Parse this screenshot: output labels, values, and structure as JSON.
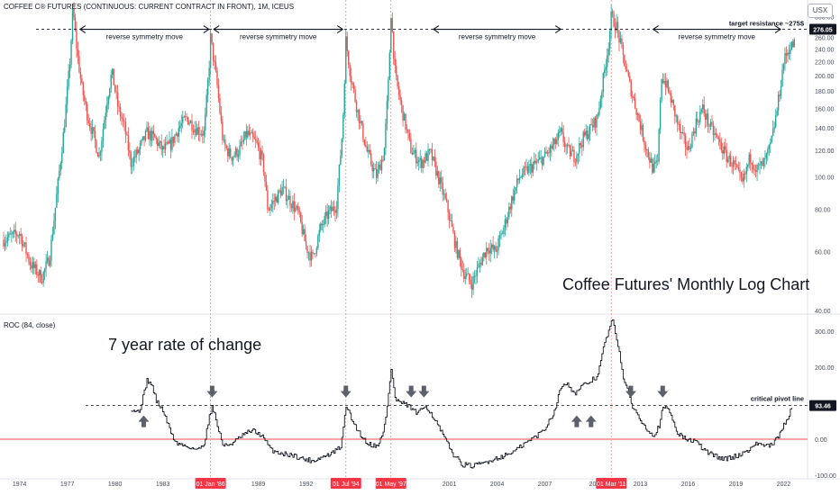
{
  "header": {
    "symbol_title": "COFFEE C® FUTURES (CONTINUOUS: CURRENT CONTRACT IN FRONT), 1M, ICEUS",
    "currency": "USX"
  },
  "annotations": {
    "main_title": "Coffee Futures' Monthly Log Chart",
    "roc_title": "7 year rate of change",
    "target_label": "target resistance ~275$",
    "pivot_label": "critical pivot line",
    "symmetry_label": "reverse symmetry move"
  },
  "colors": {
    "up": "#26a69a",
    "down": "#ef5350",
    "roc_line": "#131722",
    "zero_line": "#f7a7a5",
    "vline": "#f28b82",
    "arrow": "#5d606b"
  },
  "chart_data": [
    {
      "type": "candlestick",
      "title": "COFFEE C® FUTURES (CONTINUOUS: CURRENT CONTRACT IN FRONT), 1M, ICEUS",
      "y_scale": "log",
      "ylim": [
        40,
        320
      ],
      "y_ticks": [
        40,
        60,
        80,
        100,
        120,
        140,
        160,
        180,
        200,
        220,
        240,
        260,
        280,
        300
      ],
      "y_tick_labels": [
        "40.00",
        "60.00",
        "80.00",
        "100.00",
        "120.00",
        "140.00",
        "160.00",
        "180.00",
        "200.00",
        "220.00",
        "240.00",
        "260.00",
        "280.00",
        "300.00"
      ],
      "top_tick_label": "3",
      "x_range": [
        1973.0,
        2023.5
      ],
      "x_ticks": [
        1974,
        1977,
        1980,
        1983,
        1989,
        1992,
        2001,
        2004,
        2007,
        2013,
        2016,
        2019,
        2022
      ],
      "x_tick_labels": [
        "1974",
        "1977",
        "1980",
        "1983",
        "1989",
        "1992",
        "2001",
        "2004",
        "2007",
        "2013",
        "2016",
        "2019",
        "2022"
      ],
      "partial_tick": {
        "x": 2010.0,
        "label": "20"
      },
      "highlighted_dates": [
        {
          "x": 1986.0,
          "label": "01 Jan '86"
        },
        {
          "x": 1994.5,
          "label": "01 Jul '94"
        },
        {
          "x": 1997.33,
          "label": "01 May '97"
        },
        {
          "x": 2011.17,
          "label": "01 Mar '11"
        }
      ],
      "last_price": 276.05,
      "last_price_label": "276.05",
      "target_resistance": 275,
      "price_path": [
        [
          1973.0,
          65
        ],
        [
          1974.0,
          68
        ],
        [
          1974.7,
          55
        ],
        [
          1975.4,
          50
        ],
        [
          1975.9,
          58
        ],
        [
          1976.3,
          85
        ],
        [
          1976.8,
          140
        ],
        [
          1977.2,
          230
        ],
        [
          1977.35,
          318
        ],
        [
          1977.6,
          240
        ],
        [
          1977.9,
          185
        ],
        [
          1978.3,
          150
        ],
        [
          1978.7,
          130
        ],
        [
          1979.0,
          115
        ],
        [
          1979.5,
          170
        ],
        [
          1979.8,
          205
        ],
        [
          1980.2,
          160
        ],
        [
          1980.6,
          140
        ],
        [
          1981.0,
          110
        ],
        [
          1981.5,
          120
        ],
        [
          1982.0,
          135
        ],
        [
          1982.5,
          130
        ],
        [
          1983.0,
          120
        ],
        [
          1983.5,
          125
        ],
        [
          1984.0,
          140
        ],
        [
          1984.5,
          150
        ],
        [
          1985.0,
          140
        ],
        [
          1985.6,
          135
        ],
        [
          1985.9,
          210
        ],
        [
          1986.0,
          260
        ],
        [
          1986.4,
          190
        ],
        [
          1986.8,
          125
        ],
        [
          1987.3,
          115
        ],
        [
          1987.8,
          120
        ],
        [
          1988.3,
          135
        ],
        [
          1988.9,
          125
        ],
        [
          1989.3,
          110
        ],
        [
          1989.6,
          80
        ],
        [
          1990.0,
          85
        ],
        [
          1990.5,
          92
        ],
        [
          1991.0,
          85
        ],
        [
          1991.5,
          78
        ],
        [
          1992.0,
          62
        ],
        [
          1992.4,
          57
        ],
        [
          1992.9,
          70
        ],
        [
          1993.4,
          78
        ],
        [
          1993.9,
          82
        ],
        [
          1994.3,
          140
        ],
        [
          1994.5,
          255
        ],
        [
          1994.8,
          200
        ],
        [
          1995.2,
          160
        ],
        [
          1995.8,
          120
        ],
        [
          1996.4,
          100
        ],
        [
          1996.9,
          118
        ],
        [
          1997.2,
          200
        ],
        [
          1997.33,
          310
        ],
        [
          1997.6,
          200
        ],
        [
          1998.0,
          160
        ],
        [
          1998.6,
          120
        ],
        [
          1999.2,
          110
        ],
        [
          1999.8,
          118
        ],
        [
          2000.3,
          100
        ],
        [
          2000.9,
          80
        ],
        [
          2001.4,
          62
        ],
        [
          2001.9,
          52
        ],
        [
          2002.4,
          48
        ],
        [
          2002.9,
          55
        ],
        [
          2003.4,
          62
        ],
        [
          2003.9,
          60
        ],
        [
          2004.4,
          70
        ],
        [
          2004.9,
          85
        ],
        [
          2005.4,
          100
        ],
        [
          2005.9,
          105
        ],
        [
          2006.5,
          110
        ],
        [
          2007.0,
          115
        ],
        [
          2007.6,
          125
        ],
        [
          2008.0,
          135
        ],
        [
          2008.4,
          120
        ],
        [
          2008.9,
          115
        ],
        [
          2009.4,
          130
        ],
        [
          2009.9,
          140
        ],
        [
          2010.3,
          150
        ],
        [
          2010.7,
          200
        ],
        [
          2011.0,
          250
        ],
        [
          2011.17,
          300
        ],
        [
          2011.5,
          280
        ],
        [
          2011.9,
          230
        ],
        [
          2012.3,
          190
        ],
        [
          2012.8,
          155
        ],
        [
          2013.3,
          125
        ],
        [
          2013.8,
          105
        ],
        [
          2014.1,
          110
        ],
        [
          2014.3,
          200
        ],
        [
          2014.6,
          190
        ],
        [
          2015.0,
          165
        ],
        [
          2015.5,
          135
        ],
        [
          2016.0,
          120
        ],
        [
          2016.5,
          145
        ],
        [
          2016.9,
          160
        ],
        [
          2017.4,
          140
        ],
        [
          2017.9,
          128
        ],
        [
          2018.4,
          115
        ],
        [
          2018.9,
          108
        ],
        [
          2019.4,
          95
        ],
        [
          2019.9,
          115
        ],
        [
          2020.3,
          105
        ],
        [
          2020.8,
          110
        ],
        [
          2021.2,
          125
        ],
        [
          2021.6,
          160
        ],
        [
          2022.0,
          220
        ],
        [
          2022.3,
          240
        ],
        [
          2022.7,
          250
        ]
      ]
    },
    {
      "type": "line",
      "title": "ROC (84, close)",
      "ylim": [
        -100,
        340
      ],
      "y_ticks": [
        -100,
        0,
        100,
        200,
        300
      ],
      "y_tick_labels": [
        "-100.00",
        "0.00",
        "100.00",
        "200.00",
        "300.00"
      ],
      "pivot_level": 93.46,
      "pivot_label": "93.46",
      "series": [
        {
          "values": [
            [
              1981.0,
              85
            ],
            [
              1981.5,
              75
            ],
            [
              1981.8,
              125
            ],
            [
              1982.0,
              165
            ],
            [
              1982.3,
              150
            ],
            [
              1982.6,
              105
            ],
            [
              1983.0,
              80
            ],
            [
              1983.4,
              30
            ],
            [
              1983.8,
              -10
            ],
            [
              1984.5,
              -20
            ],
            [
              1985.2,
              -30
            ],
            [
              1985.6,
              -10
            ],
            [
              1985.9,
              60
            ],
            [
              1986.1,
              95
            ],
            [
              1986.4,
              40
            ],
            [
              1986.8,
              -20
            ],
            [
              1987.4,
              -10
            ],
            [
              1988.0,
              10
            ],
            [
              1988.6,
              25
            ],
            [
              1989.2,
              10
            ],
            [
              1989.8,
              -30
            ],
            [
              1990.5,
              -40
            ],
            [
              1991.2,
              -45
            ],
            [
              1991.8,
              -55
            ],
            [
              1992.4,
              -60
            ],
            [
              1993.0,
              -50
            ],
            [
              1993.6,
              -40
            ],
            [
              1994.2,
              -20
            ],
            [
              1994.5,
              95
            ],
            [
              1994.8,
              60
            ],
            [
              1995.3,
              20
            ],
            [
              1995.8,
              -10
            ],
            [
              1996.4,
              -20
            ],
            [
              1996.8,
              10
            ],
            [
              1997.0,
              60
            ],
            [
              1997.33,
              195
            ],
            [
              1997.6,
              110
            ],
            [
              1998.0,
              100
            ],
            [
              1998.5,
              90
            ],
            [
              1999.0,
              70
            ],
            [
              1999.5,
              95
            ],
            [
              2000.0,
              60
            ],
            [
              2000.6,
              10
            ],
            [
              2001.2,
              -40
            ],
            [
              2001.8,
              -70
            ],
            [
              2002.5,
              -75
            ],
            [
              2003.2,
              -65
            ],
            [
              2003.8,
              -55
            ],
            [
              2004.5,
              -45
            ],
            [
              2005.2,
              -30
            ],
            [
              2005.8,
              -10
            ],
            [
              2006.5,
              10
            ],
            [
              2007.0,
              30
            ],
            [
              2007.6,
              80
            ],
            [
              2008.0,
              145
            ],
            [
              2008.4,
              160
            ],
            [
              2008.8,
              125
            ],
            [
              2009.3,
              145
            ],
            [
              2009.8,
              160
            ],
            [
              2010.3,
              175
            ],
            [
              2010.7,
              260
            ],
            [
              2011.0,
              300
            ],
            [
              2011.2,
              335
            ],
            [
              2011.6,
              260
            ],
            [
              2011.9,
              175
            ],
            [
              2012.4,
              100
            ],
            [
              2012.9,
              60
            ],
            [
              2013.4,
              30
            ],
            [
              2013.8,
              10
            ],
            [
              2014.2,
              40
            ],
            [
              2014.4,
              90
            ],
            [
              2014.8,
              80
            ],
            [
              2015.3,
              20
            ],
            [
              2015.8,
              0
            ],
            [
              2016.4,
              -5
            ],
            [
              2017.0,
              -30
            ],
            [
              2017.6,
              -45
            ],
            [
              2018.2,
              -55
            ],
            [
              2018.8,
              -50
            ],
            [
              2019.4,
              -40
            ],
            [
              2019.9,
              -25
            ],
            [
              2020.4,
              -10
            ],
            [
              2020.9,
              -20
            ],
            [
              2021.3,
              -15
            ],
            [
              2021.7,
              10
            ],
            [
              2022.0,
              40
            ],
            [
              2022.3,
              65
            ],
            [
              2022.5,
              88
            ]
          ]
        }
      ],
      "down_arrows": [
        1986.1,
        1994.5,
        1998.6,
        1999.4,
        2012.4,
        2014.4
      ],
      "up_arrows": [
        1981.8,
        2009.0,
        2009.9
      ],
      "zero_line": 0
    }
  ],
  "symmetry_arrows": [
    {
      "x_start": 1977.8,
      "x_end": 1985.9
    },
    {
      "x_start": 1986.2,
      "x_end": 1994.3
    },
    {
      "x_start": 2000.0,
      "x_end": 2008.0
    },
    {
      "x_start": 2013.8,
      "x_end": 2021.8
    }
  ]
}
